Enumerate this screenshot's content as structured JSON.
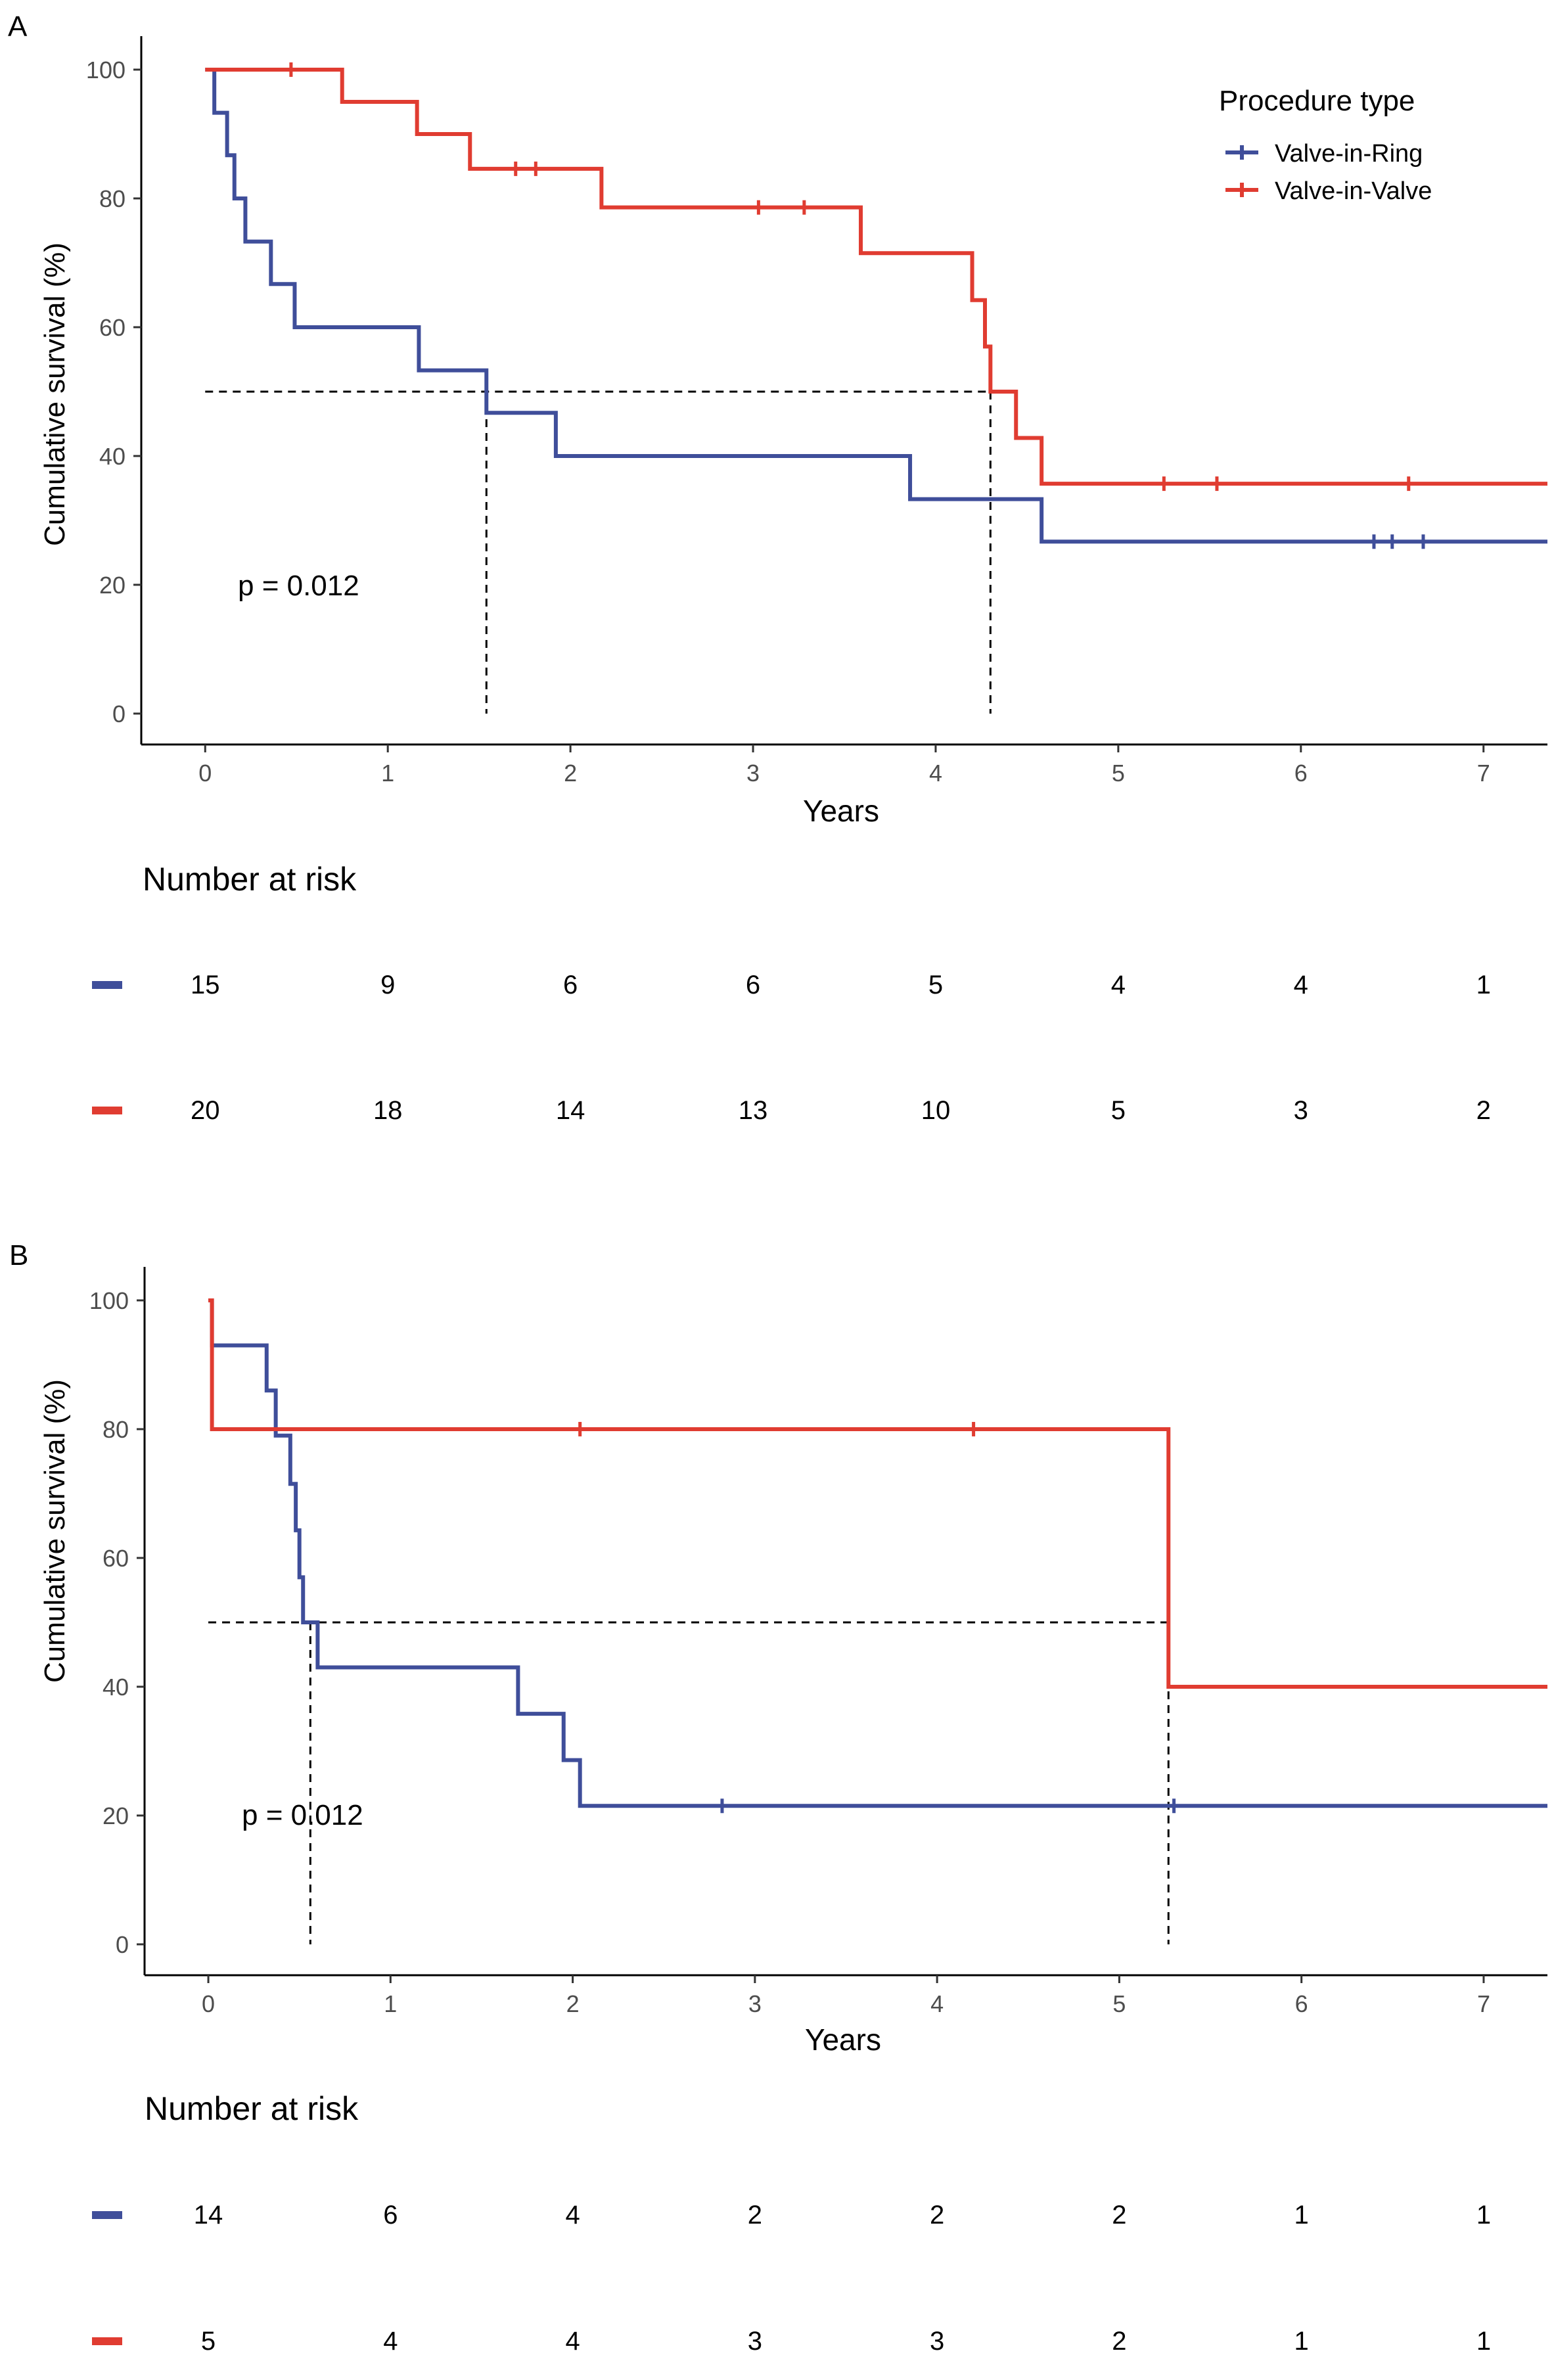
{
  "figure": {
    "legend": {
      "title": "Procedure type",
      "items": [
        {
          "label": "Valve-in-Ring",
          "color": "#3F4E9A"
        },
        {
          "label": "Valve-in-Valve",
          "color": "#E03C31"
        }
      ]
    },
    "risk_title": "Number at risk"
  },
  "chart_data": [
    {
      "type": "line",
      "panel": "A",
      "xlabel": "Years",
      "ylabel": "Cumulative survival (%)",
      "xlim": [
        -0.35,
        7.35
      ],
      "ylim": [
        -4.8,
        105.2
      ],
      "x_ticks": [
        0,
        1,
        2,
        3,
        4,
        5,
        6,
        7
      ],
      "y_ticks": [
        0,
        20,
        40,
        60,
        80,
        100
      ],
      "annotation": "p = 0.012",
      "median_line": 50,
      "medians": [
        1.54,
        4.3
      ],
      "series": [
        {
          "name": "Valve-in-Ring",
          "color": "#3F4E9A",
          "steps": [
            [
              0,
              100
            ],
            [
              0.05,
              93.3
            ],
            [
              0.12,
              86.7
            ],
            [
              0.16,
              80
            ],
            [
              0.22,
              73.3
            ],
            [
              0.36,
              66.7
            ],
            [
              0.49,
              60
            ],
            [
              1.17,
              53.3
            ],
            [
              1.54,
              46.7
            ],
            [
              1.92,
              40
            ],
            [
              3.86,
              33.3
            ],
            [
              4.58,
              26.7
            ],
            [
              7.37,
              26.7
            ]
          ],
          "censored": [
            [
              6.4,
              26.7
            ],
            [
              6.5,
              26.7
            ],
            [
              6.67,
              26.7
            ]
          ]
        },
        {
          "name": "Valve-in-Valve",
          "color": "#E03C31",
          "steps": [
            [
              0,
              100
            ],
            [
              0.75,
              95
            ],
            [
              1.16,
              90
            ],
            [
              1.45,
              84.6
            ],
            [
              2.17,
              78.6
            ],
            [
              3.59,
              71.5
            ],
            [
              4.2,
              64.2
            ],
            [
              4.27,
              57
            ],
            [
              4.3,
              50
            ],
            [
              4.44,
              42.8
            ],
            [
              4.58,
              35.7
            ],
            [
              7.37,
              35.7
            ]
          ],
          "censored": [
            [
              0.47,
              100
            ],
            [
              1.7,
              84.6
            ],
            [
              1.81,
              84.6
            ],
            [
              3.03,
              78.6
            ],
            [
              3.28,
              78.6
            ],
            [
              5.25,
              35.7
            ],
            [
              5.54,
              35.7
            ],
            [
              6.59,
              35.7
            ]
          ]
        }
      ],
      "risk_table": {
        "times": [
          0,
          1,
          2,
          3,
          4,
          5,
          6,
          7
        ],
        "rows": [
          {
            "name": "Valve-in-Ring",
            "color": "#3F4E9A",
            "values": [
              "15",
              "9",
              "6",
              "6",
              "5",
              "4",
              "4",
              "1"
            ]
          },
          {
            "name": "Valve-in-Valve",
            "color": "#E03C31",
            "values": [
              "20",
              "18",
              "14",
              "13",
              "10",
              "5",
              "3",
              "2"
            ]
          }
        ]
      }
    },
    {
      "type": "line",
      "panel": "B",
      "xlabel": "Years",
      "ylabel": "Cumulative survival (%)",
      "xlim": [
        -0.35,
        7.35
      ],
      "ylim": [
        -4.8,
        105.2
      ],
      "x_ticks": [
        0,
        1,
        2,
        3,
        4,
        5,
        6,
        7
      ],
      "y_ticks": [
        0,
        20,
        40,
        60,
        80,
        100
      ],
      "annotation": "p = 0.012",
      "median_line": 50,
      "medians": [
        0.56,
        5.27
      ],
      "series": [
        {
          "name": "Valve-in-Ring",
          "color": "#3F4E9A",
          "steps": [
            [
              0,
              100
            ],
            [
              0.02,
              93
            ],
            [
              0.32,
              86
            ],
            [
              0.37,
              79
            ],
            [
              0.45,
              71.5
            ],
            [
              0.48,
              64.3
            ],
            [
              0.5,
              57
            ],
            [
              0.52,
              50
            ],
            [
              0.6,
              43
            ],
            [
              1.7,
              35.8
            ],
            [
              1.95,
              28.6
            ],
            [
              2.04,
              21.5
            ],
            [
              7.37,
              21.5
            ]
          ],
          "censored": [
            [
              2.82,
              21.5
            ],
            [
              5.3,
              21.5
            ]
          ]
        },
        {
          "name": "Valve-in-Valve",
          "color": "#E03C31",
          "steps": [
            [
              0,
              100
            ],
            [
              0.02,
              80
            ],
            [
              5.27,
              40
            ],
            [
              7.37,
              40
            ]
          ],
          "censored": [
            [
              2.04,
              80
            ],
            [
              4.2,
              80
            ]
          ]
        }
      ],
      "risk_table": {
        "times": [
          0,
          1,
          2,
          3,
          4,
          5,
          6,
          7
        ],
        "rows": [
          {
            "name": "Valve-in-Ring",
            "color": "#3F4E9A",
            "values": [
              "14",
              "6",
              "4",
              "2",
              "2",
              "2",
              "1",
              "1"
            ]
          },
          {
            "name": "Valve-in-Valve",
            "color": "#E03C31",
            "values": [
              "5",
              "4",
              "4",
              "3",
              "3",
              "2",
              "1",
              "1"
            ]
          }
        ]
      }
    }
  ]
}
